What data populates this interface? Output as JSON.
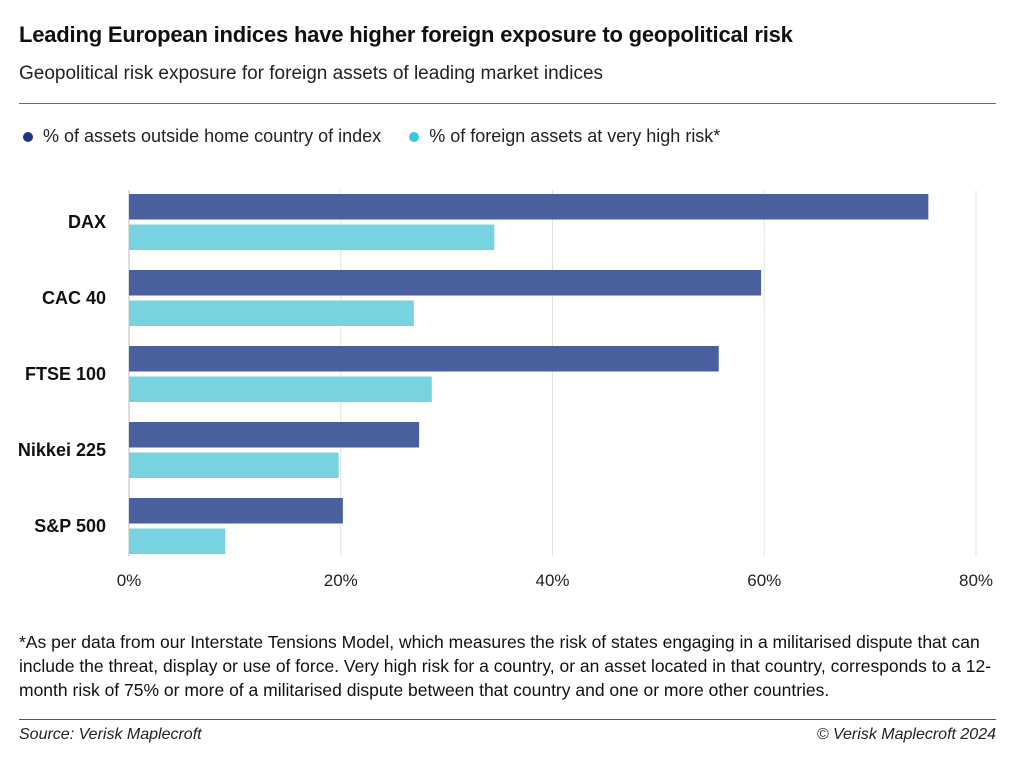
{
  "header": {
    "title": "Leading European indices have higher foreign exposure to geopolitical risk",
    "subtitle": "Geopolitical risk exposure for foreign assets of leading market indices"
  },
  "legend": {
    "items": [
      {
        "label": "% of assets outside home country of index",
        "color": "#1f3580"
      },
      {
        "label": "% of foreign assets at very high risk*",
        "color": "#3cc8e0"
      }
    ]
  },
  "chart_data": {
    "type": "bar",
    "orientation": "horizontal",
    "categories": [
      "DAX",
      "CAC 40",
      "FTSE 100",
      "Nikkei 225",
      "S&P 500"
    ],
    "series": [
      {
        "name": "% of assets outside home country of index",
        "color": "#4a5f9e",
        "values": [
          75.5,
          59.7,
          55.7,
          27.4,
          20.2
        ]
      },
      {
        "name": "% of foreign assets at very high risk*",
        "color": "#78d3e0",
        "values": [
          34.5,
          26.9,
          28.6,
          19.8,
          9.1
        ]
      }
    ],
    "xlim": [
      0,
      80
    ],
    "xticks": [
      "0%",
      "20%",
      "40%",
      "60%",
      "80%"
    ],
    "grid": true
  },
  "footer": {
    "footnote": "*As per data from our Interstate Tensions Model, which measures the risk of states engaging in a militarised dispute that can include the threat, display or use of force. Very high risk for a country, or an asset located in that country, corresponds to a 12-month risk of 75% or more of a militarised dispute between that country and one or more other countries.",
    "source": "Source: Verisk Maplecroft",
    "copyright": "© Verisk Maplecroft 2024"
  }
}
